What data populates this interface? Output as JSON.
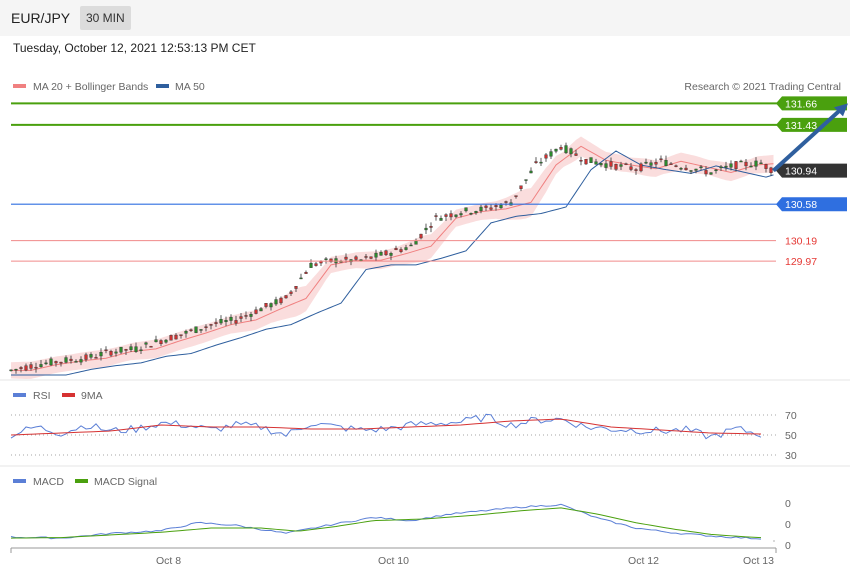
{
  "header": {
    "pair": "EUR/JPY",
    "timeframe": "30 MIN"
  },
  "datetime": "Tuesday, October 12, 2021 12:53:13 PM CET",
  "attribution": "Research © 2021 Trading Central",
  "colors": {
    "resistance": "#4aa00e",
    "support": "#2f6fe0",
    "support_red": "#e53935",
    "arrow": "#2f5f9e",
    "candle_up": "#2d8a2d",
    "candle_down": "#cc3333",
    "bollinger": "#f7c6c6",
    "ma20": "#f08080",
    "ma50": "#2f5f9e",
    "rsi": "#5b7fd6",
    "rsi_ma": "#d63232",
    "macd": "#5b7fd6",
    "macd_signal": "#4aa00e"
  },
  "chart_data": [
    {
      "type": "candlestick",
      "title": "EUR/JPY",
      "legend": [
        "MA 20 + Bollinger Bands",
        "MA 50"
      ],
      "levels": [
        {
          "value": 131.66,
          "label": "131.66",
          "kind": "resistance"
        },
        {
          "value": 131.43,
          "label": "131.43",
          "kind": "resistance"
        },
        {
          "value": 130.94,
          "label": "130.94",
          "kind": "last"
        },
        {
          "value": 130.58,
          "label": "130.58",
          "kind": "support"
        },
        {
          "value": 130.19,
          "label": "130.19",
          "kind": "support2"
        },
        {
          "value": 129.97,
          "label": "129.97",
          "kind": "support2"
        }
      ],
      "ylim": [
        128.75,
        131.75
      ],
      "close_path": [
        [
          0,
          128.8
        ],
        [
          10,
          128.86
        ],
        [
          20,
          128.9
        ],
        [
          30,
          128.93
        ],
        [
          40,
          129.0
        ],
        [
          50,
          129.03
        ],
        [
          60,
          129.12
        ],
        [
          70,
          129.2
        ],
        [
          80,
          129.29
        ],
        [
          90,
          129.34
        ],
        [
          100,
          129.46
        ],
        [
          110,
          129.57
        ],
        [
          120,
          129.93
        ],
        [
          130,
          129.98
        ],
        [
          140,
          129.98
        ],
        [
          150,
          130.05
        ],
        [
          160,
          130.13
        ],
        [
          170,
          130.43
        ],
        [
          180,
          130.5
        ],
        [
          190,
          130.53
        ],
        [
          200,
          130.6
        ],
        [
          210,
          131.0
        ],
        [
          220,
          131.2
        ],
        [
          230,
          131.05
        ],
        [
          240,
          131.0
        ],
        [
          250,
          130.96
        ],
        [
          260,
          131.04
        ],
        [
          270,
          130.98
        ],
        [
          280,
          130.92
        ],
        [
          290,
          131.0
        ],
        [
          300,
          131.02
        ],
        [
          305,
          130.94
        ]
      ],
      "arrow": {
        "from": [
          305,
          130.94
        ],
        "to": [
          330,
          131.66
        ]
      },
      "x_ticks": [
        {
          "x": 63,
          "label": "Oct 8"
        },
        {
          "x": 153,
          "label": "Oct 10"
        },
        {
          "x": 253,
          "label": "Oct 12"
        },
        {
          "x": 299,
          "label": "Oct 13"
        }
      ]
    },
    {
      "type": "line",
      "legend": [
        "RSI",
        "9MA"
      ],
      "ylim": [
        25,
        80
      ],
      "y_ticks": [
        "70",
        "50",
        "30"
      ],
      "series": [
        {
          "name": "RSI",
          "values": [
            [
              0,
              50
            ],
            [
              10,
              58
            ],
            [
              20,
              52
            ],
            [
              30,
              60
            ],
            [
              40,
              54
            ],
            [
              50,
              56
            ],
            [
              60,
              62
            ],
            [
              70,
              60
            ],
            [
              80,
              55
            ],
            [
              90,
              60
            ],
            [
              100,
              58
            ],
            [
              110,
              50
            ],
            [
              120,
              62
            ],
            [
              130,
              58
            ],
            [
              140,
              55
            ],
            [
              150,
              56
            ],
            [
              160,
              60
            ],
            [
              170,
              62
            ],
            [
              180,
              63
            ],
            [
              190,
              68
            ],
            [
              200,
              60
            ],
            [
              210,
              65
            ],
            [
              220,
              66
            ],
            [
              230,
              58
            ],
            [
              240,
              56
            ],
            [
              250,
              55
            ],
            [
              260,
              54
            ],
            [
              270,
              55
            ],
            [
              280,
              48
            ],
            [
              290,
              56
            ],
            [
              300,
              51
            ]
          ]
        },
        {
          "name": "9MA",
          "values": [
            [
              0,
              50
            ],
            [
              20,
              52
            ],
            [
              40,
              54
            ],
            [
              60,
              60
            ],
            [
              80,
              58
            ],
            [
              100,
              58
            ],
            [
              120,
              56
            ],
            [
              140,
              56
            ],
            [
              160,
              58
            ],
            [
              180,
              60
            ],
            [
              200,
              64
            ],
            [
              220,
              66
            ],
            [
              240,
              58
            ],
            [
              260,
              55
            ],
            [
              280,
              52
            ],
            [
              300,
              51
            ]
          ]
        }
      ]
    },
    {
      "type": "line",
      "legend": [
        "MACD",
        "MACD Signal"
      ],
      "y_ticks": [
        "0",
        "0",
        "0"
      ],
      "ylim": [
        -0.1,
        0.9
      ],
      "series": [
        {
          "name": "MACD",
          "values": [
            [
              0,
              0.05
            ],
            [
              20,
              0.03
            ],
            [
              40,
              0.12
            ],
            [
              60,
              0.17
            ],
            [
              75,
              0.32
            ],
            [
              90,
              0.27
            ],
            [
              110,
              0.12
            ],
            [
              130,
              0.3
            ],
            [
              145,
              0.42
            ],
            [
              160,
              0.36
            ],
            [
              175,
              0.48
            ],
            [
              190,
              0.55
            ],
            [
              205,
              0.62
            ],
            [
              220,
              0.66
            ],
            [
              235,
              0.4
            ],
            [
              250,
              0.22
            ],
            [
              265,
              0.13
            ],
            [
              280,
              0.07
            ],
            [
              295,
              0.03
            ],
            [
              300,
              0.02
            ]
          ]
        },
        {
          "name": "MACD Signal",
          "values": [
            [
              0,
              0.03
            ],
            [
              20,
              0.04
            ],
            [
              40,
              0.09
            ],
            [
              60,
              0.14
            ],
            [
              80,
              0.22
            ],
            [
              100,
              0.22
            ],
            [
              115,
              0.16
            ],
            [
              130,
              0.25
            ],
            [
              145,
              0.36
            ],
            [
              165,
              0.39
            ],
            [
              185,
              0.46
            ],
            [
              205,
              0.55
            ],
            [
              220,
              0.6
            ],
            [
              235,
              0.48
            ],
            [
              250,
              0.32
            ],
            [
              265,
              0.2
            ],
            [
              280,
              0.1
            ],
            [
              295,
              0.05
            ],
            [
              300,
              0.04
            ]
          ]
        }
      ]
    }
  ]
}
